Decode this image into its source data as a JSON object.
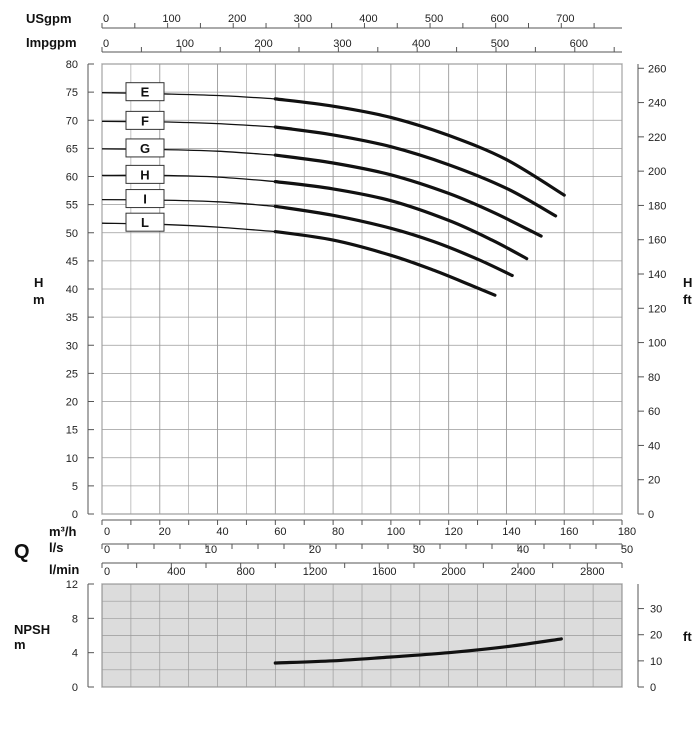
{
  "chart_data": [
    {
      "type": "line",
      "name": "head-chart",
      "y_left": {
        "label_top": "H",
        "label_bottom": "m",
        "range": [
          0,
          80
        ],
        "ticks": [
          "0",
          "5",
          "10",
          "15",
          "20",
          "25",
          "30",
          "35",
          "40",
          "45",
          "50",
          "55",
          "60",
          "65",
          "70",
          "75",
          "80"
        ]
      },
      "y_right": {
        "label_top": "H",
        "label_bottom": "ft",
        "range": [
          0,
          262.5
        ],
        "ticks": [
          "0",
          "20",
          "40",
          "60",
          "80",
          "100",
          "120",
          "140",
          "160",
          "180",
          "200",
          "220",
          "240",
          "260"
        ]
      },
      "x_axes": {
        "usgpm": {
          "label": "USgpm",
          "ticks": [
            "0",
            "100",
            "200",
            "300",
            "400",
            "500",
            "600",
            "700"
          ]
        },
        "impgpm": {
          "label": "Impgpm",
          "ticks": [
            "0",
            "100",
            "200",
            "300",
            "400",
            "500",
            "600"
          ]
        },
        "m3h": {
          "label": "m³/h",
          "ticks": [
            "0",
            "20",
            "40",
            "60",
            "80",
            "100",
            "120",
            "140",
            "160",
            "180"
          ],
          "range": [
            0,
            180
          ]
        },
        "ls": {
          "label": "l/s",
          "ticks": [
            "0",
            "10",
            "20",
            "30",
            "40",
            "50"
          ]
        },
        "lmin": {
          "label": "l/min",
          "ticks": [
            "0",
            "400",
            "800",
            "1200",
            "1600",
            "2000",
            "2400",
            "2800"
          ]
        },
        "q_symbol": "Q"
      },
      "grid": true,
      "series": [
        {
          "name": "E",
          "x": [
            0,
            20,
            40,
            60,
            80,
            100,
            120,
            140,
            160
          ],
          "y": [
            74.9,
            74.7,
            74.4,
            73.8,
            72.5,
            70.5,
            67.3,
            63.0,
            56.7
          ]
        },
        {
          "name": "F",
          "x": [
            0,
            20,
            40,
            60,
            80,
            100,
            120,
            140,
            157
          ],
          "y": [
            69.8,
            69.7,
            69.4,
            68.8,
            67.4,
            65.3,
            62.1,
            57.9,
            53.0
          ]
        },
        {
          "name": "G",
          "x": [
            0,
            20,
            40,
            60,
            80,
            100,
            120,
            136,
            152
          ],
          "y": [
            64.9,
            64.8,
            64.5,
            63.8,
            62.4,
            60.3,
            57.0,
            53.5,
            49.4
          ]
        },
        {
          "name": "H",
          "x": [
            0,
            20,
            40,
            60,
            80,
            100,
            120,
            135,
            147
          ],
          "y": [
            60.2,
            60.2,
            59.9,
            59.1,
            57.8,
            55.7,
            52.2,
            48.7,
            45.4
          ]
        },
        {
          "name": "I",
          "x": [
            0,
            20,
            40,
            60,
            80,
            100,
            115,
            130,
            142
          ],
          "y": [
            55.9,
            55.8,
            55.5,
            54.7,
            53.1,
            50.8,
            48.4,
            45.3,
            42.4
          ]
        },
        {
          "name": "L",
          "x": [
            0,
            20,
            40,
            60,
            80,
            100,
            115,
            128,
            136
          ],
          "y": [
            51.7,
            51.5,
            51.0,
            50.2,
            48.7,
            46.0,
            43.3,
            40.6,
            38.9
          ]
        }
      ]
    },
    {
      "type": "line",
      "name": "npsh-chart",
      "y_left": {
        "label_top": "NPSH",
        "label_bottom": "m",
        "range": [
          0,
          12
        ],
        "ticks": [
          "0",
          "4",
          "8",
          "12"
        ]
      },
      "y_right": {
        "label": "ft",
        "range": [
          0,
          39.4
        ],
        "ticks": [
          "0",
          "10",
          "20",
          "30"
        ]
      },
      "x_range": [
        0,
        180
      ],
      "grid": true,
      "series": [
        {
          "x": [
            60,
            80,
            100,
            120,
            140,
            159
          ],
          "y": [
            2.8,
            3.05,
            3.5,
            4.0,
            4.7,
            5.6
          ]
        }
      ]
    }
  ]
}
